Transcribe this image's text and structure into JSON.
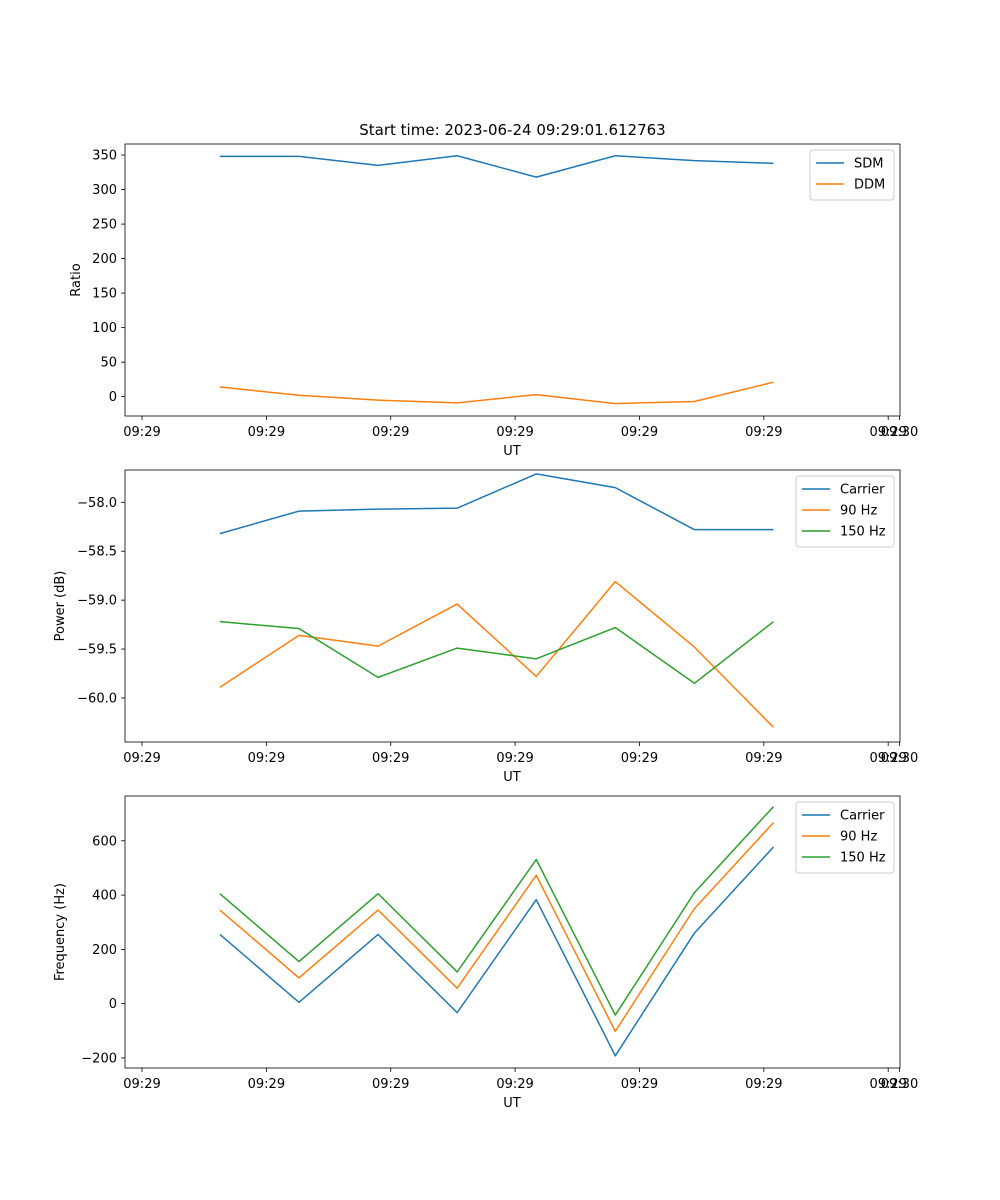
{
  "chart_data": [
    {
      "type": "line",
      "title": "Start time: 2023-06-24 09:29:01.612763",
      "xlabel": "UT",
      "ylabel": "Ratio",
      "x_tick_labels": [
        "09:29",
        "09:29",
        "09:29",
        "09:29",
        "09:29",
        "09:29",
        "09:29",
        "09:30"
      ],
      "x": [
        1,
        2,
        3,
        4,
        5,
        6,
        7,
        8
      ],
      "xlim": [
        0.2,
        9.4
      ],
      "ylim": [
        -28,
        366
      ],
      "yticks": [
        0,
        50,
        100,
        150,
        200,
        250,
        300,
        350
      ],
      "ytick_labels": [
        "0",
        "50",
        "100",
        "150",
        "200",
        "250",
        "300",
        "350"
      ],
      "legend_position": "upper right",
      "series": [
        {
          "name": "SDM",
          "color": "#1f77b4",
          "values": [
            348,
            348,
            335,
            349,
            318,
            349,
            342,
            338
          ]
        },
        {
          "name": "DDM",
          "color": "#ff7f0e",
          "values": [
            14,
            2,
            -5,
            -9,
            3,
            -10,
            -7,
            21
          ]
        }
      ]
    },
    {
      "type": "line",
      "title": "",
      "xlabel": "UT",
      "ylabel": "Power (dB)",
      "x_tick_labels": [
        "09:29",
        "09:29",
        "09:29",
        "09:29",
        "09:29",
        "09:29",
        "09:29",
        "09:30"
      ],
      "x": [
        1,
        2,
        3,
        4,
        5,
        6,
        7,
        8
      ],
      "xlim": [
        0.2,
        9.4
      ],
      "ylim": [
        -60.45,
        -57.67
      ],
      "yticks": [
        -60.0,
        -59.5,
        -59.0,
        -58.5,
        -58.0
      ],
      "ytick_labels": [
        "−60.0",
        "−59.5",
        "−59.0",
        "−58.5",
        "−58.0"
      ],
      "legend_position": "upper right",
      "series": [
        {
          "name": "Carrier",
          "color": "#1f77b4",
          "values": [
            -58.32,
            -58.09,
            -58.07,
            -58.06,
            -57.71,
            -57.85,
            -58.28,
            -58.28
          ]
        },
        {
          "name": "90 Hz",
          "color": "#ff7f0e",
          "values": [
            -59.89,
            -59.36,
            -59.47,
            -59.04,
            -59.78,
            -58.81,
            -59.48,
            -60.3
          ]
        },
        {
          "name": "150 Hz",
          "color": "#2ca02c",
          "values": [
            -59.22,
            -59.29,
            -59.79,
            -59.49,
            -59.6,
            -59.28,
            -59.85,
            -59.22
          ]
        }
      ]
    },
    {
      "type": "line",
      "title": "",
      "xlabel": "UT",
      "ylabel": "Frequency (Hz)",
      "x_tick_labels": [
        "09:29",
        "09:29",
        "09:29",
        "09:29",
        "09:29",
        "09:29",
        "09:29",
        "09:30"
      ],
      "x": [
        1,
        2,
        3,
        4,
        5,
        6,
        7,
        8
      ],
      "xlim": [
        0.2,
        9.4
      ],
      "ylim": [
        -237,
        765
      ],
      "yticks": [
        -200,
        0,
        200,
        400,
        600
      ],
      "ytick_labels": [
        "−200",
        "0",
        "200",
        "400",
        "600"
      ],
      "legend_position": "upper right",
      "series": [
        {
          "name": "Carrier",
          "color": "#1f77b4",
          "values": [
            255,
            5,
            255,
            -33,
            383,
            -192,
            260,
            577
          ]
        },
        {
          "name": "90 Hz",
          "color": "#ff7f0e",
          "values": [
            345,
            95,
            345,
            57,
            473,
            -102,
            350,
            667
          ]
        },
        {
          "name": "150 Hz",
          "color": "#2ca02c",
          "values": [
            405,
            155,
            405,
            117,
            531,
            -42,
            409,
            726
          ]
        }
      ]
    }
  ]
}
